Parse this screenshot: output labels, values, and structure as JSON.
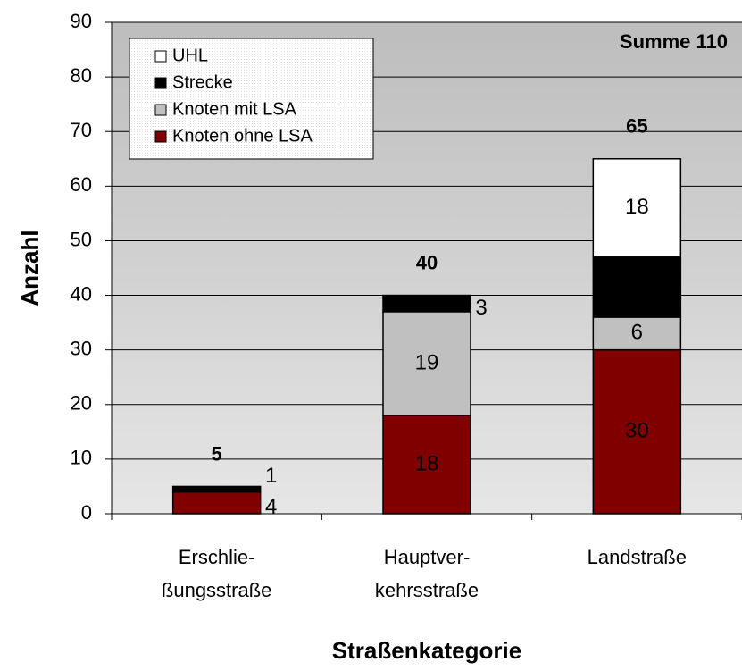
{
  "chart_data": {
    "type": "stacked_bar",
    "categories": [
      [
        "Erschlie-",
        "ßungsstraße"
      ],
      [
        "Hauptver-",
        "kehrsstraße"
      ],
      [
        "Landstraße"
      ]
    ],
    "series": [
      {
        "name": "Knoten ohne LSA",
        "color": "#800000",
        "values": [
          4,
          18,
          30
        ]
      },
      {
        "name": "Knoten mit LSA",
        "color": "#c0c0c0",
        "values": [
          0,
          19,
          6
        ]
      },
      {
        "name": "Strecke",
        "color": "#000000",
        "values": [
          1,
          3,
          11
        ]
      },
      {
        "name": "UHL",
        "color": "#ffffff",
        "values": [
          0,
          0,
          18
        ]
      }
    ],
    "totals": [
      5,
      40,
      65
    ],
    "annotation": "Summe 110",
    "ylabel": "Anzahl",
    "xlabel": "Straßenkategorie",
    "ylim": [
      0,
      90
    ],
    "yticks": [
      0,
      10,
      20,
      30,
      40,
      50,
      60,
      70,
      80,
      90
    ],
    "grid": true,
    "legend": "upper left"
  }
}
